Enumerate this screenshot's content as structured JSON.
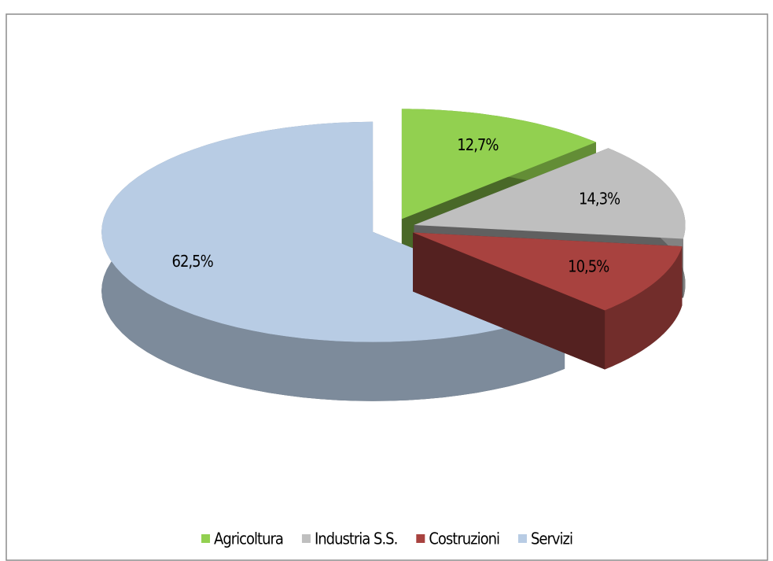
{
  "chart_data": {
    "type": "pie",
    "categories": [
      "Agricoltura",
      "Industria S.S.",
      "Costruzioni",
      "Servizi"
    ],
    "values": [
      12.7,
      14.3,
      10.5,
      62.5
    ],
    "value_labels": [
      "12,7%",
      "14,3%",
      "10,5%",
      "62,5%"
    ],
    "colors": [
      "#92d050",
      "#bfbfbf",
      "#a8423f",
      "#b8cce4"
    ],
    "legend": "bottom"
  }
}
